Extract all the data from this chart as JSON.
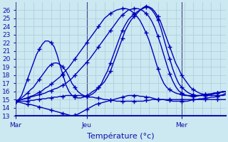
{
  "background_color": "#cce8f0",
  "grid_color": "#aaccdd",
  "line_color": "#0000bb",
  "marker": "+",
  "markersize": 4,
  "linewidth": 1.0,
  "ylim": [
    13,
    27
  ],
  "yticks": [
    13,
    14,
    15,
    16,
    17,
    18,
    19,
    20,
    21,
    22,
    23,
    24,
    25,
    26
  ],
  "xlabel": "Température (°c)",
  "xlabel_fontsize": 8,
  "tick_fontsize": 6.5,
  "xtick_labels": [
    "Mar",
    "Jeu",
    "Mer"
  ],
  "xtick_positions": [
    0,
    24,
    56
  ],
  "total_points": 72,
  "vline_color": "#444488",
  "series": {
    "main_curve": [
      14.8,
      15.0,
      15.5,
      16.5,
      17.5,
      18.5,
      19.5,
      20.5,
      21.2,
      21.8,
      22.2,
      22.2,
      22.0,
      21.5,
      20.5,
      19.2,
      18.0,
      16.8,
      16.0,
      15.5,
      15.3,
      15.2,
      15.2,
      15.3,
      15.5,
      15.7,
      16.0,
      16.2,
      16.5,
      16.8,
      17.2,
      17.8,
      18.5,
      19.5,
      20.5,
      21.5,
      22.5,
      23.5,
      24.2,
      24.8,
      25.2,
      25.6,
      26.0,
      26.3,
      26.5,
      26.4,
      26.2,
      25.8,
      25.2,
      24.5,
      23.5,
      22.5,
      21.5,
      20.5,
      19.5,
      18.8,
      18.0,
      17.5,
      17.0,
      16.5,
      16.2,
      16.0,
      15.8,
      15.7,
      15.6,
      15.5,
      15.5,
      15.5,
      15.5,
      15.5,
      15.6,
      15.8
    ],
    "diag1": [
      14.8,
      15.0,
      15.2,
      15.5,
      15.8,
      16.2,
      16.5,
      17.0,
      17.5,
      18.0,
      18.5,
      19.0,
      19.3,
      19.5,
      19.5,
      19.3,
      19.0,
      18.5,
      17.8,
      17.0,
      16.5,
      16.0,
      15.7,
      15.5,
      15.4,
      15.5,
      15.7,
      16.0,
      16.5,
      17.0,
      17.8,
      18.5,
      19.5,
      20.5,
      21.5,
      22.5,
      23.5,
      24.2,
      24.8,
      25.2,
      25.5,
      25.8,
      26.0,
      26.2,
      26.4,
      26.3,
      26.0,
      25.5,
      24.8,
      23.8,
      22.5,
      21.2,
      20.0,
      18.8,
      17.8,
      17.0,
      16.5,
      16.2,
      15.9,
      15.7,
      15.6,
      15.5,
      15.5,
      15.5,
      15.5,
      15.5,
      15.6,
      15.7,
      15.8,
      15.9,
      16.0,
      16.0
    ],
    "straight1": [
      14.8,
      14.9,
      15.0,
      15.1,
      15.2,
      15.4,
      15.5,
      15.7,
      15.9,
      16.1,
      16.4,
      16.6,
      16.9,
      17.2,
      17.5,
      17.8,
      18.2,
      18.6,
      19.0,
      19.5,
      20.0,
      20.5,
      21.0,
      21.5,
      22.0,
      22.5,
      23.0,
      23.5,
      24.0,
      24.5,
      25.0,
      25.3,
      25.6,
      25.8,
      26.0,
      26.1,
      26.2,
      26.2,
      26.1,
      25.9,
      25.6,
      25.2,
      24.7,
      24.0,
      23.2,
      22.3,
      21.2,
      20.0,
      18.8,
      17.8,
      17.0,
      16.5,
      16.2,
      16.0,
      15.8,
      15.7,
      15.6,
      15.5,
      15.5,
      15.5,
      15.5,
      15.5,
      15.5,
      15.6,
      15.6,
      15.7,
      15.7,
      15.8,
      15.8,
      15.9,
      15.9,
      16.0
    ],
    "straight2": [
      14.8,
      14.9,
      15.0,
      15.1,
      15.2,
      15.3,
      15.4,
      15.5,
      15.6,
      15.7,
      15.8,
      16.0,
      16.1,
      16.3,
      16.4,
      16.6,
      16.8,
      17.0,
      17.3,
      17.6,
      18.0,
      18.4,
      18.8,
      19.2,
      19.6,
      20.0,
      20.5,
      21.0,
      21.5,
      22.0,
      22.5,
      23.0,
      23.5,
      24.0,
      24.5,
      25.0,
      25.4,
      25.7,
      26.0,
      26.1,
      26.2,
      26.2,
      26.1,
      25.9,
      25.6,
      25.2,
      24.6,
      23.8,
      22.8,
      21.7,
      20.5,
      19.3,
      18.2,
      17.3,
      16.6,
      16.1,
      15.8,
      15.6,
      15.5,
      15.4,
      15.4,
      15.4,
      15.5,
      15.5,
      15.6,
      15.6,
      15.7,
      15.8,
      15.8,
      15.9,
      16.0,
      16.0
    ],
    "low_curve": [
      14.8,
      14.7,
      14.6,
      14.5,
      14.4,
      14.4,
      14.3,
      14.2,
      14.1,
      14.0,
      13.9,
      13.8,
      13.7,
      13.6,
      13.5,
      13.4,
      13.3,
      13.2,
      13.1,
      13.0,
      13.1,
      13.2,
      13.4,
      13.6,
      13.8,
      14.0,
      14.2,
      14.4,
      14.5,
      14.6,
      14.7,
      14.8,
      14.9,
      15.0,
      15.1,
      15.2,
      15.3,
      15.4,
      15.5,
      15.5,
      15.5,
      15.5,
      15.4,
      15.4,
      15.3,
      15.3,
      15.2,
      15.1,
      15.0,
      15.0,
      15.0,
      14.9,
      14.9,
      14.8,
      14.8,
      14.8,
      14.8,
      14.8,
      14.8,
      14.9,
      15.0,
      15.0,
      15.1,
      15.1,
      15.2,
      15.2,
      15.3,
      15.3,
      15.4,
      15.5,
      15.5,
      15.6
    ],
    "flat1": [
      14.8,
      14.8,
      14.8,
      14.8,
      14.8,
      14.9,
      14.9,
      15.0,
      15.0,
      15.1,
      15.1,
      15.2,
      15.2,
      15.3,
      15.3,
      15.4,
      15.4,
      15.5,
      15.5,
      15.5,
      15.5,
      15.5,
      15.5,
      15.4,
      15.4,
      15.3,
      15.3,
      15.2,
      15.2,
      15.1,
      15.0,
      15.0,
      14.9,
      14.9,
      14.8,
      14.8,
      14.8,
      14.8,
      14.8,
      14.8,
      14.8,
      14.8,
      14.8,
      14.8,
      14.9,
      14.9,
      15.0,
      15.0,
      15.0,
      15.0,
      15.0,
      15.0,
      15.0,
      15.0,
      15.0,
      15.0,
      15.0,
      15.0,
      15.0,
      15.0,
      15.0,
      15.0,
      15.0,
      15.0,
      15.0,
      15.0,
      15.0,
      15.0,
      15.0,
      15.0,
      15.0,
      15.0
    ]
  }
}
